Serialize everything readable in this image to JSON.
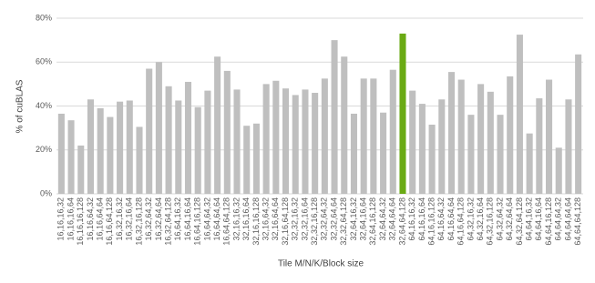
{
  "chart_data": {
    "type": "bar",
    "y_label": "% of cuBLAS",
    "x_label": "Tile M/N/K/Block size",
    "categories": [
      "16,16,16,32",
      "16,16,16,64",
      "16,16,16,128",
      "16,16,64,32",
      "16,16,64,64",
      "16,16,64,128",
      "16,32,16,32",
      "16,32,16,64",
      "16,32,16,128",
      "16,32,64,32",
      "16,32,64,64",
      "16,32,64,128",
      "16,64,16,32",
      "16,64,16,64",
      "16,64,16,128",
      "16,64,64,32",
      "16,64,64,64",
      "16,64,64,128",
      "32,16,16,32",
      "32,16,16,64",
      "32,16,16,128",
      "32,16,64,32",
      "32,16,64,64",
      "32,16,64,128",
      "32,32,16,32",
      "32,32,16,64",
      "32,32,16,128",
      "32,32,64,32",
      "32,32,64,64",
      "32,32,64,128",
      "32,64,16,32",
      "32,64,16,64",
      "32,64,16,128",
      "32,64,64,32",
      "32,64,64,64",
      "32,64,64,128",
      "64,16,16,32",
      "64,16,16,64",
      "64,16,16,128",
      "64,16,64,32",
      "64,16,64,64",
      "64,16,64,128",
      "64,32,16,32",
      "64,32,16,64",
      "64,32,16,128",
      "64,32,64,32",
      "64,32,64,64",
      "64,32,64,128",
      "64,64,16,32",
      "64,64,16,64",
      "64,64,16,128",
      "64,64,64,32",
      "64,64,64,64",
      "64,64,64,128"
    ],
    "values": [
      36.5,
      33.5,
      22,
      43,
      39,
      35,
      42,
      42.5,
      30.5,
      57,
      60,
      49,
      42.5,
      51,
      39.5,
      47,
      62.5,
      56,
      47.5,
      31,
      32,
      50,
      51.5,
      48,
      45,
      47.5,
      46,
      52.5,
      70,
      62.5,
      36.5,
      52.5,
      52.5,
      37,
      56.5,
      73,
      47,
      41,
      31.5,
      43,
      55.5,
      52,
      36,
      50,
      46.5,
      36,
      53.5,
      72.5,
      27.5,
      43.5,
      52,
      21,
      43,
      63.5
    ],
    "colors": [
      "#bfbfbf",
      "#bfbfbf",
      "#bfbfbf",
      "#bfbfbf",
      "#bfbfbf",
      "#bfbfbf",
      "#bfbfbf",
      "#bfbfbf",
      "#bfbfbf",
      "#bfbfbf",
      "#bfbfbf",
      "#bfbfbf",
      "#bfbfbf",
      "#bfbfbf",
      "#bfbfbf",
      "#bfbfbf",
      "#bfbfbf",
      "#bfbfbf",
      "#bfbfbf",
      "#bfbfbf",
      "#bfbfbf",
      "#bfbfbf",
      "#bfbfbf",
      "#bfbfbf",
      "#bfbfbf",
      "#bfbfbf",
      "#bfbfbf",
      "#bfbfbf",
      "#bfbfbf",
      "#bfbfbf",
      "#bfbfbf",
      "#bfbfbf",
      "#bfbfbf",
      "#bfbfbf",
      "#bfbfbf",
      "#6aaa14",
      "#bfbfbf",
      "#bfbfbf",
      "#bfbfbf",
      "#bfbfbf",
      "#bfbfbf",
      "#bfbfbf",
      "#bfbfbf",
      "#bfbfbf",
      "#bfbfbf",
      "#bfbfbf",
      "#bfbfbf",
      "#bfbfbf",
      "#bfbfbf",
      "#bfbfbf",
      "#bfbfbf",
      "#bfbfbf",
      "#bfbfbf",
      "#bfbfbf"
    ],
    "ylim": [
      0,
      80
    ],
    "yticks": [
      {
        "value": 0,
        "label": "0%"
      },
      {
        "value": 20,
        "label": "20%"
      },
      {
        "value": 40,
        "label": "40%"
      },
      {
        "value": 60,
        "label": "60%"
      },
      {
        "value": 80,
        "label": "80%"
      }
    ],
    "grid": true
  }
}
